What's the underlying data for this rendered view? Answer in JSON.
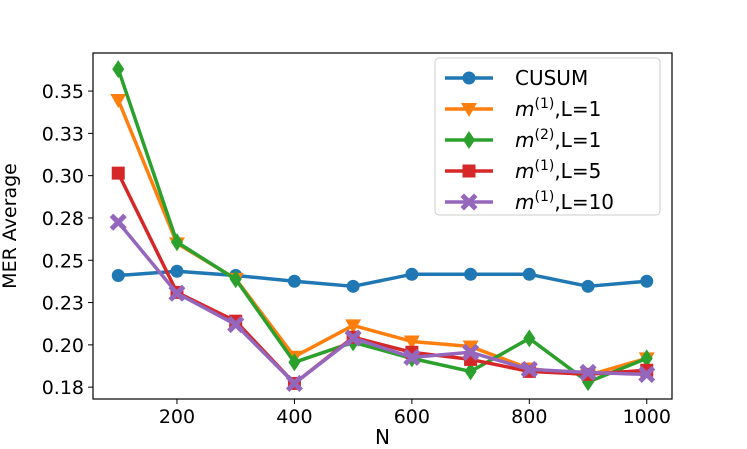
{
  "chart_data": {
    "type": "line",
    "title": "",
    "xlabel": "N",
    "ylabel": "MER Average",
    "x": [
      100,
      200,
      300,
      400,
      500,
      600,
      700,
      800,
      900,
      1000
    ],
    "xlim": [
      57,
      1043
    ],
    "ylim": [
      0.168,
      0.3725
    ],
    "xticks": [
      200,
      400,
      600,
      800,
      1000
    ],
    "xtick_labels": [
      "200",
      "400",
      "600",
      "800",
      "1000"
    ],
    "yticks": [
      0.175,
      0.2,
      0.225,
      0.25,
      0.275,
      0.3,
      0.325,
      0.35
    ],
    "ytick_labels": [
      "0.18",
      "0.20",
      "0.23",
      "0.25",
      "0.28",
      "0.30",
      "0.33",
      "0.35"
    ],
    "grid": false,
    "legend_placement": "top-right",
    "series": [
      {
        "name": "CUSUM",
        "base": "CUSUM",
        "sup": "",
        "color": "#1f77b4",
        "marker": "circle",
        "values": [
          0.241,
          0.2435,
          0.241,
          0.2376,
          0.2346,
          0.2417,
          0.2417,
          0.2417,
          0.2346,
          0.2376
        ]
      },
      {
        "name": "m(1),L=1",
        "base": "m",
        "sup": "(1)",
        "suffix": ",L=1",
        "color": "#ff7f0e",
        "marker": "triangle-down",
        "values": [
          0.3447,
          0.26,
          0.239,
          0.193,
          0.2115,
          0.202,
          0.199,
          0.186,
          0.182,
          0.192
        ]
      },
      {
        "name": "m(2),L=1",
        "base": "m",
        "sup": "(2)",
        "suffix": ",L=1",
        "color": "#2ca02c",
        "marker": "diamond",
        "values": [
          0.363,
          0.2607,
          0.2388,
          0.1897,
          0.2015,
          0.192,
          0.1843,
          0.2038,
          0.178,
          0.192
        ]
      },
      {
        "name": "m(1),L=5",
        "base": "m",
        "sup": "(1)",
        "suffix": ",L=5",
        "color": "#d62728",
        "marker": "square",
        "values": [
          0.3015,
          0.231,
          0.214,
          0.1772,
          0.2045,
          0.1956,
          0.1914,
          0.1843,
          0.1826,
          0.185
        ]
      },
      {
        "name": "m(1),L=10",
        "base": "m",
        "sup": "(1)",
        "suffix": ",L=10",
        "color": "#9467bd",
        "marker": "x",
        "values": [
          0.2725,
          0.2305,
          0.212,
          0.1772,
          0.204,
          0.1926,
          0.1956,
          0.1855,
          0.1837,
          0.1825
        ]
      }
    ]
  }
}
